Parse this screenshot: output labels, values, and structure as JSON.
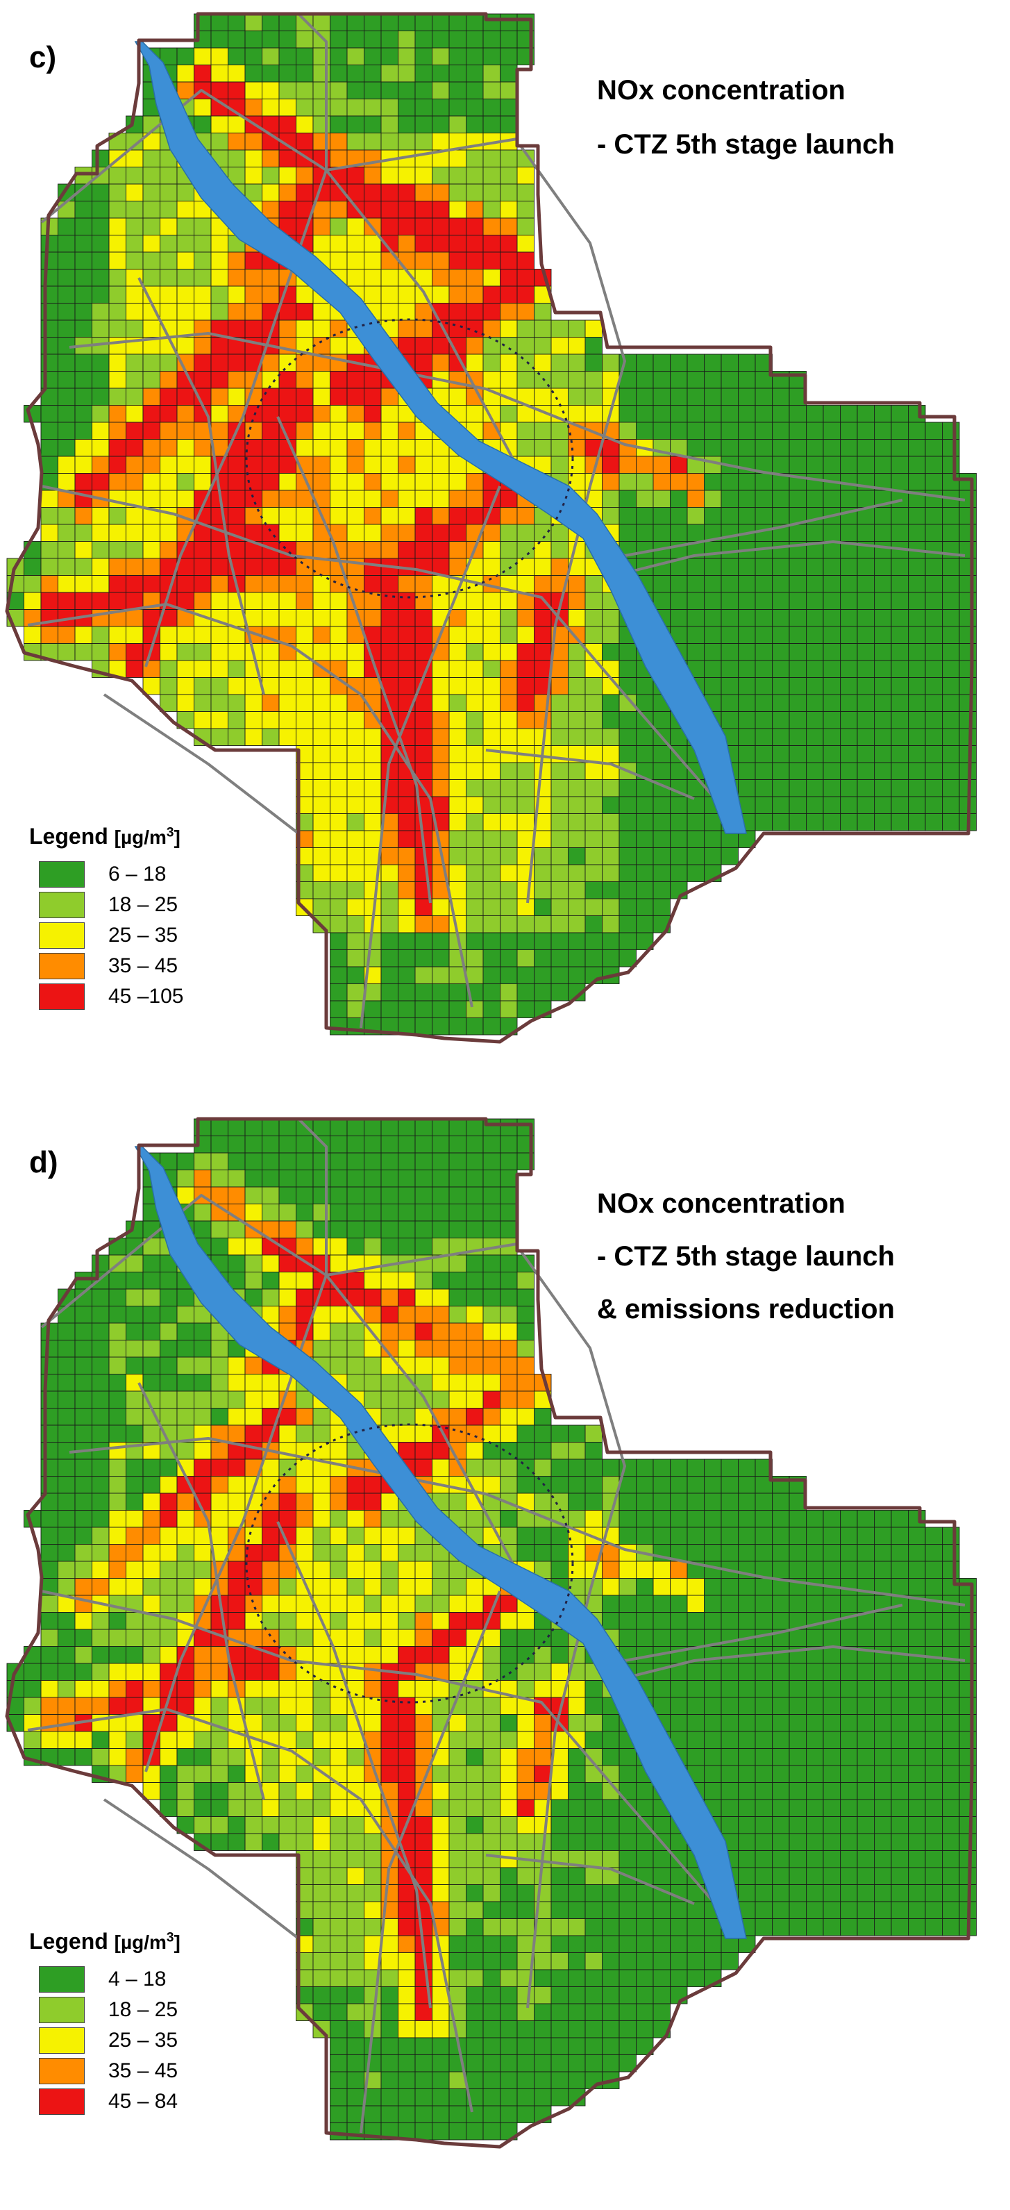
{
  "colors": {
    "c1": "#2e9e24",
    "c2": "#8fcc2c",
    "c3": "#f6f200",
    "c4": "#ff8c00",
    "c5": "#ec1414",
    "river": "#3d8fd6",
    "border": "#6b3b3b",
    "road": "#7f7f7f",
    "zone": "#222244"
  },
  "panels": [
    {
      "letter": "c)",
      "title_lines": [
        "NOx concentration",
        "- CTZ 5th stage launch"
      ],
      "legend": {
        "title": "Legend",
        "unit": "[µg/m",
        "unit_sup": "3",
        "unit_close": "]",
        "ranges": [
          "6 – 18",
          "18 – 25",
          "25 – 35",
          "35 – 45",
          "45 –105"
        ]
      }
    },
    {
      "letter": "d)",
      "title_lines": [
        "NOx concentration",
        "- CTZ 5th stage launch",
        "& emissions reduction"
      ],
      "legend": {
        "title": "Legend",
        "unit": "[µg/m",
        "unit_sup": "3",
        "unit_close": "]",
        "ranges": [
          "4 – 18",
          "18 – 25",
          "25 – 35",
          "35 – 45",
          "45 – 84"
        ]
      }
    }
  ]
}
